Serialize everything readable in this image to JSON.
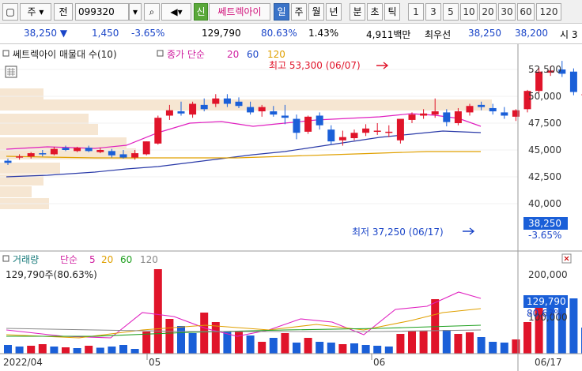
{
  "toolbar": {
    "market": "주",
    "code_label": "전",
    "code": "099320",
    "new_label": "신",
    "stock_name": "쎄트렉아이",
    "periods": [
      "일",
      "주",
      "월",
      "년",
      "분",
      "초",
      "틱"
    ],
    "active_period": "일",
    "intervals": [
      "1",
      "3",
      "5",
      "10",
      "20",
      "30",
      "60",
      "120"
    ]
  },
  "infobar": {
    "price": "38,250",
    "change": "1,450",
    "change_pct": "-3.65%",
    "volume": "129,790",
    "volume_ratio": "80.63%",
    "turnover": "1.43%",
    "amount": "4,911백만",
    "best_label": "최우선",
    "ask": "38,250",
    "bid": "38,200",
    "tail": "시 3"
  },
  "price_panel": {
    "stock_label": "쎄트렉아이 매물대 수(10)",
    "ma_label": "종가 단순",
    "ma_periods": [
      "20",
      "60",
      "120"
    ],
    "high_label": "최고 53,300 (06/07)",
    "low_label": "최저 37,250 (06/17)",
    "y_ticks": [
      "52,500",
      "50,000",
      "47,500",
      "45,000",
      "42,500",
      "40,000"
    ],
    "last_price": "38,250",
    "last_pct": "-3.65%"
  },
  "volume_panel": {
    "title": "거래량",
    "ma_label": "단순",
    "ma_periods": [
      "5",
      "20",
      "60",
      "120"
    ],
    "current": "129,790주(80.63%)",
    "y_ticks": [
      "200,000",
      "100,000"
    ],
    "last_volume": "129,790",
    "last_pct": "80.63%"
  },
  "x_axis": [
    "2022/04",
    "05",
    "06",
    "06/17"
  ],
  "colors": {
    "up": "#e0142a",
    "down": "#1a5fd8",
    "ma5": "#e020c0",
    "ma20": "#e0a000",
    "ma60": "#20a020",
    "ma120": "#888888"
  }
}
